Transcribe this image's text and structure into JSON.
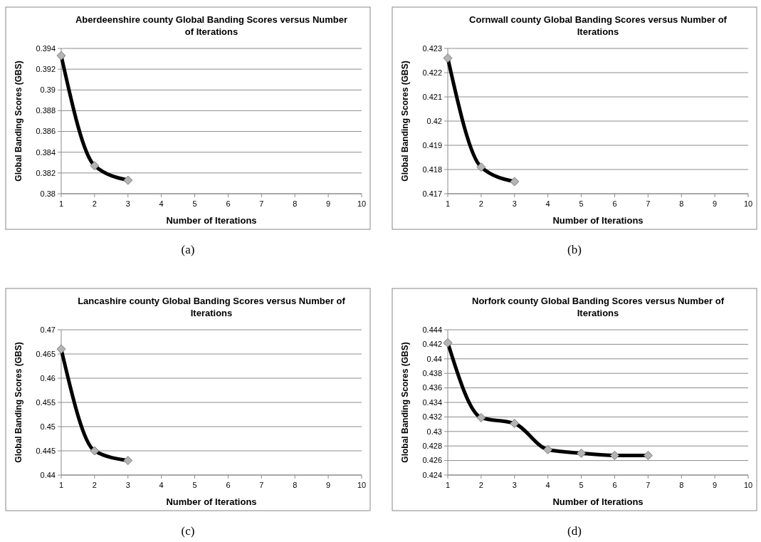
{
  "chart_data": [
    {
      "type": "line",
      "title": "Aberdeenshire county Global Banding Scores versus Number of Iterations",
      "xlabel": "Number of Iterations",
      "ylabel": "Global Banding Scores (GBS)",
      "x": [
        1,
        2,
        3
      ],
      "series": [
        {
          "color": "#000000",
          "values": [
            0.3933,
            0.3827,
            0.3813
          ]
        }
      ],
      "xlim": [
        1,
        10
      ],
      "xticks": [
        1,
        2,
        3,
        4,
        5,
        6,
        7,
        8,
        9,
        10
      ],
      "ylim": [
        0.38,
        0.394
      ],
      "yticks": [
        0.38,
        0.382,
        0.384,
        0.386,
        0.388,
        0.39,
        0.392,
        0.394
      ],
      "grid": "y",
      "marker": "diamond",
      "line_style": "solid",
      "annotations": [
        "(a)"
      ]
    },
    {
      "type": "line",
      "title": "Cornwall county Global Banding Scores versus Number of Iterations",
      "xlabel": "Number of Iterations",
      "ylabel": "Global Banding Scores (GBS)",
      "x": [
        1,
        2,
        3
      ],
      "series": [
        {
          "color": "#000000",
          "values": [
            0.4226,
            0.4181,
            0.4175
          ]
        }
      ],
      "xlim": [
        1,
        10
      ],
      "xticks": [
        1,
        2,
        3,
        4,
        5,
        6,
        7,
        8,
        9,
        10
      ],
      "ylim": [
        0.417,
        0.423
      ],
      "yticks": [
        0.417,
        0.418,
        0.419,
        0.42,
        0.421,
        0.422,
        0.423
      ],
      "grid": "y",
      "marker": "diamond",
      "line_style": "solid",
      "annotations": [
        "(b)"
      ]
    },
    {
      "type": "line",
      "title": "Lancashire county Global Banding Scores versus Number of Iterations",
      "xlabel": "Number of Iterations",
      "ylabel": "Global Banding Scores (GBS)",
      "x": [
        1,
        2,
        3
      ],
      "series": [
        {
          "color": "#000000",
          "values": [
            0.466,
            0.445,
            0.443
          ]
        }
      ],
      "xlim": [
        1,
        10
      ],
      "xticks": [
        1,
        2,
        3,
        4,
        5,
        6,
        7,
        8,
        9,
        10
      ],
      "ylim": [
        0.44,
        0.47
      ],
      "yticks": [
        0.44,
        0.445,
        0.45,
        0.455,
        0.46,
        0.465,
        0.47
      ],
      "grid": "y",
      "marker": "diamond",
      "line_style": "solid",
      "annotations": [
        "(c)"
      ]
    },
    {
      "type": "line",
      "title": "Norfork county Global Banding Scores versus Number of Iterations",
      "xlabel": "Number of Iterations",
      "ylabel": "Global Banding Scores (GBS)",
      "x": [
        1,
        2,
        3,
        4,
        5,
        6,
        7
      ],
      "series": [
        {
          "color": "#000000",
          "values": [
            0.4422,
            0.4319,
            0.4311,
            0.4275,
            0.427,
            0.4267,
            0.4267
          ]
        }
      ],
      "xlim": [
        1,
        10
      ],
      "xticks": [
        1,
        2,
        3,
        4,
        5,
        6,
        7,
        8,
        9,
        10
      ],
      "ylim": [
        0.424,
        0.444
      ],
      "yticks": [
        0.424,
        0.426,
        0.428,
        0.43,
        0.432,
        0.434,
        0.436,
        0.438,
        0.44,
        0.442,
        0.444
      ],
      "grid": "y",
      "marker": "diamond",
      "line_style": "solid",
      "annotations": [
        "(d)"
      ]
    }
  ]
}
